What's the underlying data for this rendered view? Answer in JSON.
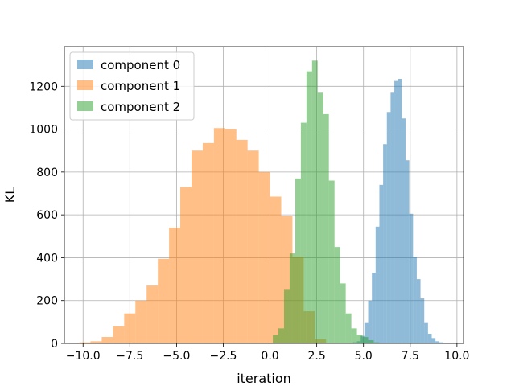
{
  "chart_data": {
    "type": "histogram",
    "xlabel": "iteration",
    "ylabel": "KL",
    "xlim": [
      -11.0,
      10.35
    ],
    "ylim": [
      0,
      1385
    ],
    "grid": true,
    "legend_position": "top-left",
    "x_ticks": [
      -10.0,
      -7.5,
      -5.0,
      -2.5,
      0.0,
      2.5,
      5.0,
      7.5,
      10.0
    ],
    "x_tick_labels": [
      "−10.0",
      "−7.5",
      "−5.0",
      "−2.5",
      "0.0",
      "2.5",
      "5.0",
      "7.5",
      "10.0"
    ],
    "y_ticks": [
      0,
      200,
      400,
      600,
      800,
      1000,
      1200
    ],
    "y_tick_labels": [
      "0",
      "200",
      "400",
      "600",
      "800",
      "1000",
      "1200"
    ],
    "series": [
      {
        "name": "component 0",
        "color": "#1f77b4",
        "alpha": 0.5,
        "bin_start": 4.45,
        "bin_width": 0.2,
        "counts": [
          5,
          10,
          35,
          95,
          200,
          330,
          545,
          740,
          930,
          1080,
          1170,
          1225,
          1235,
          1050,
          855,
          605,
          405,
          300,
          210,
          95,
          45,
          25,
          10,
          5
        ]
      },
      {
        "name": "component 1",
        "color": "#ff7f0e",
        "alpha": 0.5,
        "bin_start": -10.2,
        "bin_width": 0.6,
        "counts": [
          5,
          10,
          30,
          80,
          140,
          200,
          270,
          395,
          540,
          730,
          900,
          935,
          1005,
          1000,
          950,
          900,
          800,
          685,
          595,
          405,
          150,
          20
        ]
      },
      {
        "name": "component 2",
        "color": "#2ca02c",
        "alpha": 0.5,
        "bin_start": 0.15,
        "bin_width": 0.3,
        "counts": [
          40,
          70,
          250,
          420,
          770,
          1030,
          1270,
          1320,
          1170,
          1070,
          760,
          450,
          280,
          140,
          70,
          40,
          30,
          15,
          5
        ]
      }
    ]
  }
}
